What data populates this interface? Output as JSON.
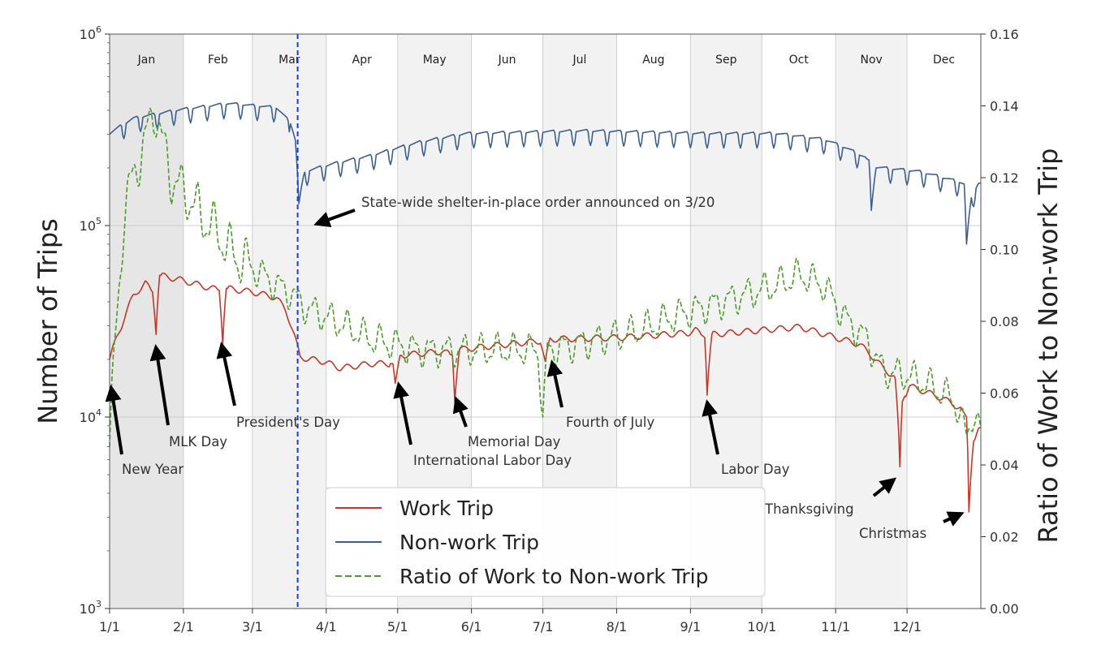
{
  "chart_data": {
    "type": "line",
    "title": "",
    "xlabel": "",
    "ylabel_left": "Number of Trips",
    "ylabel_right": "Ratio of Work to Non-work Trip",
    "y_left_scale": "log",
    "y_left_range": [
      1000,
      1000000
    ],
    "y_left_ticks": [
      {
        "value": 1000,
        "base": "10",
        "exp": "3"
      },
      {
        "value": 10000,
        "base": "10",
        "exp": "4"
      },
      {
        "value": 100000,
        "base": "10",
        "exp": "5"
      },
      {
        "value": 1000000,
        "base": "10",
        "exp": "6"
      }
    ],
    "y_right_range": [
      0.0,
      0.16
    ],
    "y_right_ticks": [
      "0.00",
      "0.02",
      "0.04",
      "0.06",
      "0.08",
      "0.10",
      "0.12",
      "0.14",
      "0.16"
    ],
    "x_range_days": [
      0,
      366
    ],
    "x_ticks": [
      {
        "label": "1/1",
        "day": 0
      },
      {
        "label": "2/1",
        "day": 31
      },
      {
        "label": "3/1",
        "day": 60
      },
      {
        "label": "4/1",
        "day": 91
      },
      {
        "label": "5/1",
        "day": 121
      },
      {
        "label": "6/1",
        "day": 152
      },
      {
        "label": "7/1",
        "day": 182
      },
      {
        "label": "8/1",
        "day": 213
      },
      {
        "label": "9/1",
        "day": 244
      },
      {
        "label": "10/1",
        "day": 274
      },
      {
        "label": "11/1",
        "day": 305
      },
      {
        "label": "12/1",
        "day": 335
      }
    ],
    "months": [
      {
        "name": "Jan",
        "start": 0,
        "end": 31,
        "shade": "#e6e6e6"
      },
      {
        "name": "Feb",
        "start": 31,
        "end": 60,
        "shade": "#ffffff"
      },
      {
        "name": "Mar",
        "start": 60,
        "end": 91,
        "shade": "#f2f2f2"
      },
      {
        "name": "Apr",
        "start": 91,
        "end": 121,
        "shade": "#ffffff"
      },
      {
        "name": "May",
        "start": 121,
        "end": 152,
        "shade": "#f2f2f2"
      },
      {
        "name": "Jun",
        "start": 152,
        "end": 182,
        "shade": "#ffffff"
      },
      {
        "name": "Jul",
        "start": 182,
        "end": 213,
        "shade": "#f2f2f2"
      },
      {
        "name": "Aug",
        "start": 213,
        "end": 244,
        "shade": "#ffffff"
      },
      {
        "name": "Sep",
        "start": 244,
        "end": 274,
        "shade": "#f2f2f2"
      },
      {
        "name": "Oct",
        "start": 274,
        "end": 305,
        "shade": "#ffffff"
      },
      {
        "name": "Nov",
        "start": 305,
        "end": 335,
        "shade": "#f2f2f2"
      },
      {
        "name": "Dec",
        "start": 335,
        "end": 366,
        "shade": "#ffffff"
      }
    ],
    "shelter_order_day": 79,
    "series": [
      {
        "name": "Work Trip",
        "axis": "left",
        "color": "#c0392b",
        "style": "solid",
        "keypoints": [
          [
            0,
            20000
          ],
          [
            5,
            30000
          ],
          [
            10,
            43000
          ],
          [
            15,
            50000
          ],
          [
            18,
            45000
          ],
          [
            19.5,
            27000
          ],
          [
            21,
            55000
          ],
          [
            30,
            52000
          ],
          [
            40,
            48000
          ],
          [
            46,
            46000
          ],
          [
            47.5,
            24000
          ],
          [
            49,
            47000
          ],
          [
            60,
            45000
          ],
          [
            70,
            42000
          ],
          [
            74,
            36000
          ],
          [
            79,
            23000
          ],
          [
            80,
            20500
          ],
          [
            90,
            19500
          ],
          [
            97,
            18000
          ],
          [
            110,
            19000
          ],
          [
            119,
            19000
          ],
          [
            120,
            15000
          ],
          [
            122,
            21000
          ],
          [
            140,
            22000
          ],
          [
            144,
            21000
          ],
          [
            145,
            12000
          ],
          [
            147,
            22500
          ],
          [
            181,
            25000
          ],
          [
            183,
            19000
          ],
          [
            185,
            25500
          ],
          [
            215,
            26000
          ],
          [
            243,
            27500
          ],
          [
            246,
            28500
          ],
          [
            250,
            26000
          ],
          [
            251,
            13000
          ],
          [
            253,
            27000
          ],
          [
            275,
            28500
          ],
          [
            290,
            29500
          ],
          [
            305,
            26000
          ],
          [
            315,
            24000
          ],
          [
            325,
            18000
          ],
          [
            330,
            16000
          ],
          [
            332,
            5500
          ],
          [
            333,
            12000
          ],
          [
            336,
            14500
          ],
          [
            350,
            12500
          ],
          [
            358,
            11000
          ],
          [
            360,
            10000
          ],
          [
            361,
            3200
          ],
          [
            363,
            7500
          ],
          [
            365,
            8500
          ]
        ]
      },
      {
        "name": "Non-work Trip",
        "axis": "left",
        "color": "#3d5f8f",
        "style": "solid",
        "keypoints": [
          [
            0,
            300000
          ],
          [
            10,
            360000
          ],
          [
            30,
            400000
          ],
          [
            50,
            430000
          ],
          [
            60,
            420000
          ],
          [
            70,
            410000
          ],
          [
            76,
            340000
          ],
          [
            78,
            280000
          ],
          [
            79.5,
            130000
          ],
          [
            82,
            190000
          ],
          [
            95,
            210000
          ],
          [
            110,
            230000
          ],
          [
            130,
            270000
          ],
          [
            150,
            300000
          ],
          [
            200,
            310000
          ],
          [
            250,
            300000
          ],
          [
            280,
            300000
          ],
          [
            300,
            280000
          ],
          [
            310,
            250000
          ],
          [
            319,
            220000
          ],
          [
            320,
            120000
          ],
          [
            322,
            200000
          ],
          [
            340,
            190000
          ],
          [
            355,
            170000
          ],
          [
            359,
            165000
          ],
          [
            360,
            80000
          ],
          [
            362,
            140000
          ],
          [
            365,
            165000
          ]
        ]
      },
      {
        "name": "Ratio of Work to Non-work Trip",
        "axis": "right",
        "color": "#4f9a2e",
        "style": "dashed",
        "keypoints": [
          [
            0,
            0.045
          ],
          [
            2,
            0.07
          ],
          [
            6,
            0.11
          ],
          [
            9,
            0.118
          ],
          [
            12,
            0.125
          ],
          [
            15,
            0.13
          ],
          [
            19,
            0.14
          ],
          [
            22,
            0.13
          ],
          [
            26,
            0.12
          ],
          [
            30,
            0.117
          ],
          [
            35,
            0.113
          ],
          [
            40,
            0.108
          ],
          [
            45,
            0.105
          ],
          [
            50,
            0.1
          ],
          [
            55,
            0.097
          ],
          [
            60,
            0.095
          ],
          [
            70,
            0.09
          ],
          [
            76,
            0.088
          ],
          [
            80,
            0.085
          ],
          [
            85,
            0.083
          ],
          [
            95,
            0.08
          ],
          [
            110,
            0.075
          ],
          [
            130,
            0.072
          ],
          [
            150,
            0.072
          ],
          [
            170,
            0.072
          ],
          [
            180,
            0.072
          ],
          [
            182,
            0.053
          ],
          [
            184,
            0.072
          ],
          [
            200,
            0.074
          ],
          [
            220,
            0.077
          ],
          [
            240,
            0.082
          ],
          [
            260,
            0.086
          ],
          [
            280,
            0.09
          ],
          [
            290,
            0.093
          ],
          [
            300,
            0.09
          ],
          [
            310,
            0.08
          ],
          [
            318,
            0.075
          ],
          [
            325,
            0.066
          ],
          [
            335,
            0.065
          ],
          [
            345,
            0.062
          ],
          [
            355,
            0.058
          ],
          [
            360,
            0.048
          ],
          [
            363,
            0.055
          ],
          [
            366,
            0.048
          ]
        ]
      }
    ],
    "legend": {
      "position": "bottom-center",
      "entries": [
        {
          "label": "Work Trip",
          "series": 0
        },
        {
          "label": "Non-work Trip",
          "series": 1
        },
        {
          "label": "Ratio of Work to Non-work Trip",
          "series": 2
        }
      ]
    },
    "annotations": [
      {
        "text": "State-wide shelter-in-place order announced on 3/20",
        "target_day": 80,
        "target_trips": 100000
      },
      {
        "text": "New Year",
        "target_day": 1,
        "target_trips": 14000
      },
      {
        "text": "MLK Day",
        "target_day": 19.5,
        "target_trips": 25000
      },
      {
        "text": "President's Day",
        "target_day": 47.5,
        "target_trips": 23000
      },
      {
        "text": "International Labor Day",
        "target_day": 120,
        "target_trips": 14000
      },
      {
        "text": "Memorial Day",
        "target_day": 145,
        "target_trips": 11500
      },
      {
        "text": "Fourth of July",
        "target_day": 183,
        "target_trips": 19000
      },
      {
        "text": "Labor Day",
        "target_day": 251,
        "target_trips": 12500
      },
      {
        "text": "Thanksgiving",
        "target_day": 332,
        "target_trips": 5500
      },
      {
        "text": "Christmas",
        "target_day": 361,
        "target_trips": 3300
      }
    ]
  }
}
